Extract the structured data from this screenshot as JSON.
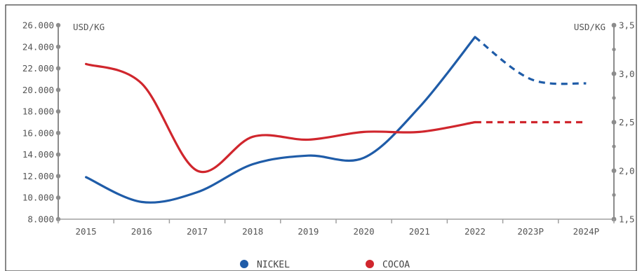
{
  "chart_data": {
    "type": "line",
    "title": "",
    "categories": [
      "2015",
      "2016",
      "2017",
      "2018",
      "2019",
      "2020",
      "2021",
      "2022",
      "2023P",
      "2024P"
    ],
    "y_left": {
      "unit_label": "USD/KG",
      "ticks": [
        "26.000",
        "24.000",
        "22.000",
        "20.000",
        "18.000",
        "16.000",
        "14.000",
        "12.000",
        "10.000",
        "8.000"
      ],
      "range": [
        8000,
        26000
      ]
    },
    "y_right": {
      "unit_label": "USD/KG",
      "ticks": [
        "3,5",
        "3,0",
        "2,5",
        "2,0",
        "1,5"
      ],
      "range": [
        1.5,
        3.5
      ]
    },
    "series": [
      {
        "name": "NICKEL",
        "axis": "left",
        "color": "#1f5ca8",
        "values": [
          11900,
          9600,
          10500,
          13100,
          13900,
          13700,
          18400,
          24900,
          21000,
          20600
        ],
        "projected_from_index": 7
      },
      {
        "name": "COCOA",
        "axis": "right",
        "color": "#d0262d",
        "values": [
          3.1,
          2.9,
          2.0,
          2.35,
          2.32,
          2.4,
          2.4,
          2.5,
          2.5,
          2.5
        ],
        "projected_from_index": 7
      }
    ],
    "legend": {
      "position": "bottom-center"
    },
    "grid": false
  }
}
